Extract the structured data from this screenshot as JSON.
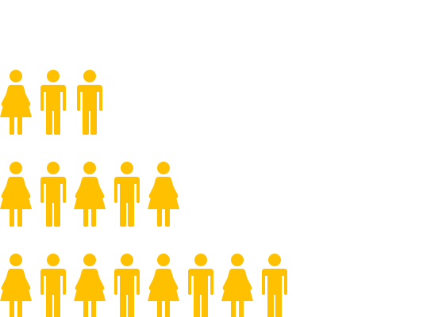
{
  "colors": {
    "figure": "#FFC000",
    "background": "#FFFFFF"
  },
  "rows": [
    {
      "figures": [
        "woman-icon",
        "man-icon",
        "man-icon"
      ]
    },
    {
      "figures": [
        "woman-icon",
        "man-icon",
        "woman-icon",
        "man-icon",
        "woman-icon"
      ]
    },
    {
      "figures": [
        "woman-icon",
        "man-icon",
        "woman-icon",
        "man-icon",
        "woman-icon",
        "man-icon",
        "woman-icon",
        "man-icon"
      ]
    }
  ]
}
